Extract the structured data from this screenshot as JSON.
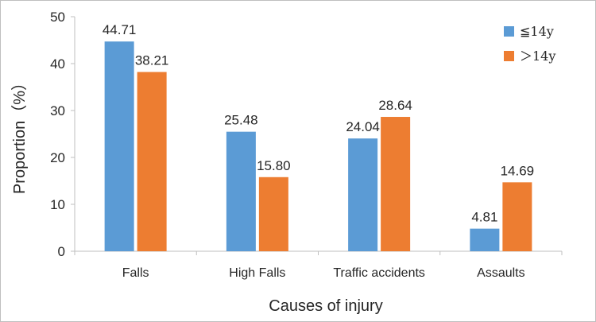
{
  "chart_data": {
    "type": "bar",
    "title": "",
    "xlabel": "Causes of injury",
    "ylabel": "Proportion（%）",
    "categories": [
      "Falls",
      "High Falls",
      "Traffic accidents",
      "Assaults"
    ],
    "series": [
      {
        "name": "≦14y",
        "values": [
          44.71,
          25.48,
          24.04,
          4.81
        ],
        "labels": [
          "44.71",
          "25.48",
          "24.04",
          "4.81"
        ],
        "color": "#5B9BD5"
      },
      {
        "name": "＞14y",
        "values": [
          38.21,
          15.8,
          28.64,
          14.69
        ],
        "labels": [
          "38.21",
          "15.80",
          "28.64",
          "14.69"
        ],
        "color": "#ED7D31"
      }
    ],
    "ylim": [
      0,
      50
    ],
    "yticks": [
      "0",
      "10",
      "20",
      "30",
      "40",
      "50"
    ],
    "grid": false,
    "legend": "top-right"
  }
}
